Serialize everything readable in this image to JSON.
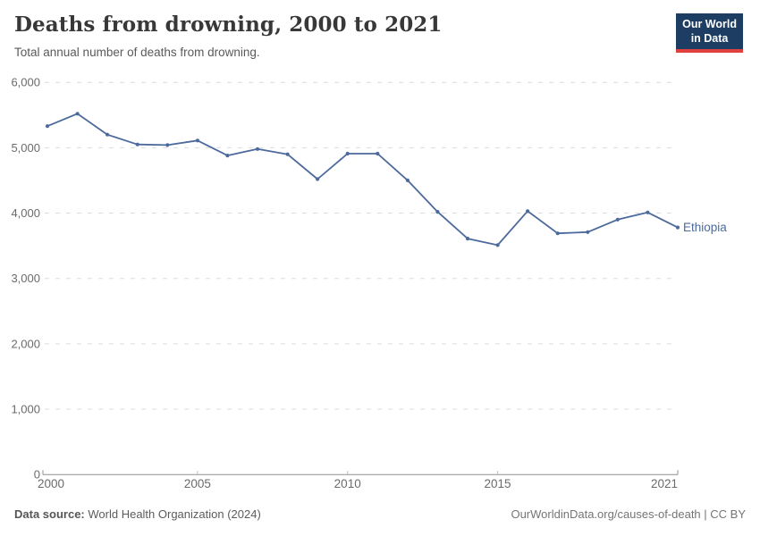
{
  "header": {
    "title": "Deaths from drowning, 2000 to 2021",
    "subtitle": "Total annual number of deaths from drowning.",
    "logo": {
      "line1": "Our World",
      "line2": "in Data"
    }
  },
  "chart_data": {
    "type": "line",
    "title": "Deaths from drowning, 2000 to 2021",
    "x": [
      2000,
      2001,
      2002,
      2003,
      2004,
      2005,
      2006,
      2007,
      2008,
      2009,
      2010,
      2011,
      2012,
      2013,
      2014,
      2015,
      2016,
      2017,
      2018,
      2019,
      2020,
      2021
    ],
    "series": [
      {
        "name": "Ethiopia",
        "color": "#4c6a9c",
        "values": [
          5330,
          5520,
          5200,
          5050,
          5040,
          5110,
          4880,
          4980,
          4900,
          4520,
          4910,
          4910,
          4500,
          4020,
          3610,
          3510,
          4030,
          3690,
          3710,
          3900,
          4010,
          3780
        ]
      }
    ],
    "ylim": [
      0,
      6000
    ],
    "yticks": [
      0,
      1000,
      2000,
      3000,
      4000,
      5000,
      6000
    ],
    "xticks": [
      2000,
      2005,
      2010,
      2015,
      2021
    ],
    "grid": "dashed horizontal gridlines, solid zero axis",
    "legend": "series label at line end"
  },
  "footer": {
    "source_label": "Data source:",
    "source_value": "World Health Organization (2024)",
    "credit": "OurWorldinData.org/causes-of-death | CC BY"
  },
  "colors": {
    "line": "#4c6a9c",
    "grid": "#dcdcdc",
    "axis": "#8f8f8f",
    "minor_tick": "#bdbdbd",
    "tick_label": "#6b6b6b",
    "logo_bg": "#1d3d63",
    "logo_red": "#e0403e"
  }
}
